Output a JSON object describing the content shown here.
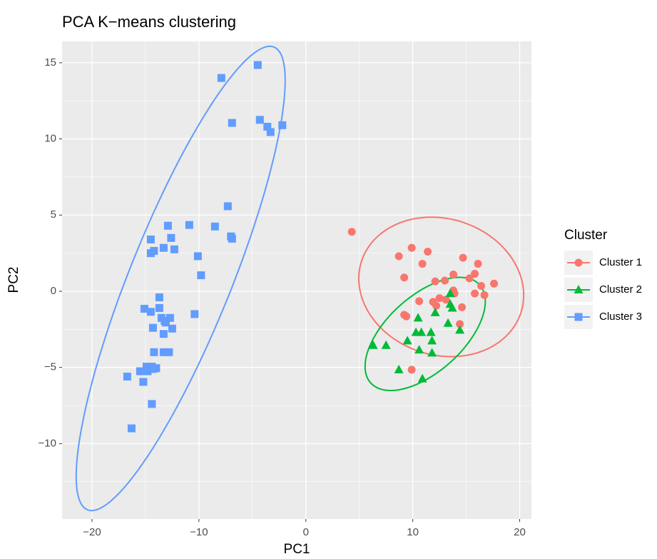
{
  "chart_data": {
    "type": "scatter",
    "title": "PCA K−means clustering",
    "x_label": "PC1",
    "y_label": "PC2",
    "legend_title": "Cluster",
    "legend": "right",
    "grid": true,
    "ellipse": true,
    "xlim": [
      -22.8,
      21.1
    ],
    "ylim": [
      -14.95,
      16.4
    ],
    "xticks": [
      {
        "value": -20,
        "label": "−20"
      },
      {
        "value": -10,
        "label": "−10"
      },
      0,
      10,
      20
    ],
    "yticks": [
      {
        "value": -10,
        "label": "−10"
      },
      {
        "value": -5,
        "label": "−5"
      },
      0,
      5,
      10,
      15
    ],
    "series": [
      {
        "name": "Cluster 1",
        "color": "#f8766d",
        "shape": "circle",
        "x": [
          4.3,
          8.7,
          9.9,
          11.4,
          10.9,
          9.2,
          14.7,
          16.1,
          13.8,
          15.8,
          15.3,
          12.1,
          13.0,
          17.6,
          16.4,
          16.7,
          15.8,
          13.9,
          13.8,
          10.6,
          12.5,
          11.9,
          12.2,
          13.1,
          14.6,
          9.2,
          9.4,
          14.4,
          9.9
        ],
        "values": [
          3.9,
          2.3,
          2.85,
          2.6,
          1.8,
          0.9,
          2.2,
          1.8,
          1.1,
          1.15,
          0.85,
          0.65,
          0.7,
          0.5,
          0.35,
          -0.25,
          -0.15,
          -0.15,
          0.05,
          -0.65,
          -0.45,
          -0.7,
          -0.95,
          -0.55,
          -1.05,
          -1.55,
          -1.65,
          -2.15,
          -5.15
        ]
      },
      {
        "name": "Cluster 2",
        "color": "#00ba38",
        "shape": "triangle",
        "x": [
          13.5,
          13.5,
          13.7,
          10.5,
          12.1,
          10.3,
          10.8,
          11.7,
          13.3,
          14.4,
          9.5,
          11.8,
          6.3,
          7.5,
          10.6,
          11.8,
          8.7,
          10.9
        ],
        "values": [
          -0.15,
          -0.85,
          -1.1,
          -1.75,
          -1.4,
          -2.7,
          -2.7,
          -2.7,
          -2.1,
          -2.55,
          -3.25,
          -3.25,
          -3.55,
          -3.55,
          -3.85,
          -4.05,
          -5.15,
          -5.75
        ]
      },
      {
        "name": "Cluster 3",
        "color": "#619cff",
        "shape": "square",
        "x": [
          -4.5,
          -7.9,
          -4.3,
          -6.9,
          -3.6,
          -3.3,
          -2.2,
          -7.3,
          -10.9,
          -12.9,
          -8.5,
          -7.0,
          -6.9,
          -14.5,
          -12.6,
          -14.2,
          -14.5,
          -13.3,
          -12.3,
          -10.1,
          -9.8,
          -13.7,
          -15.1,
          -13.7,
          -14.5,
          -13.5,
          -10.4,
          -13.2,
          -13.1,
          -12.7,
          -14.3,
          -12.5,
          -13.3,
          -14.2,
          -13.3,
          -12.8,
          -14.9,
          -14.4,
          -14.8,
          -15.5,
          -14.0,
          -14.3,
          -16.7,
          -15.2,
          -14.4,
          -16.3
        ],
        "values": [
          14.85,
          14.0,
          11.25,
          11.05,
          10.8,
          10.45,
          10.9,
          5.58,
          4.35,
          4.3,
          4.25,
          3.6,
          3.45,
          3.4,
          3.5,
          2.65,
          2.5,
          2.85,
          2.75,
          2.3,
          1.05,
          -0.4,
          -1.15,
          -1.1,
          -1.35,
          -1.75,
          -1.5,
          -1.95,
          -2.05,
          -1.75,
          -2.4,
          -2.45,
          -2.8,
          -4.0,
          -4.0,
          -4.0,
          -4.95,
          -4.95,
          -5.25,
          -5.25,
          -5.05,
          -5.1,
          -5.6,
          -5.95,
          -7.4,
          -9.0
        ]
      }
    ]
  }
}
